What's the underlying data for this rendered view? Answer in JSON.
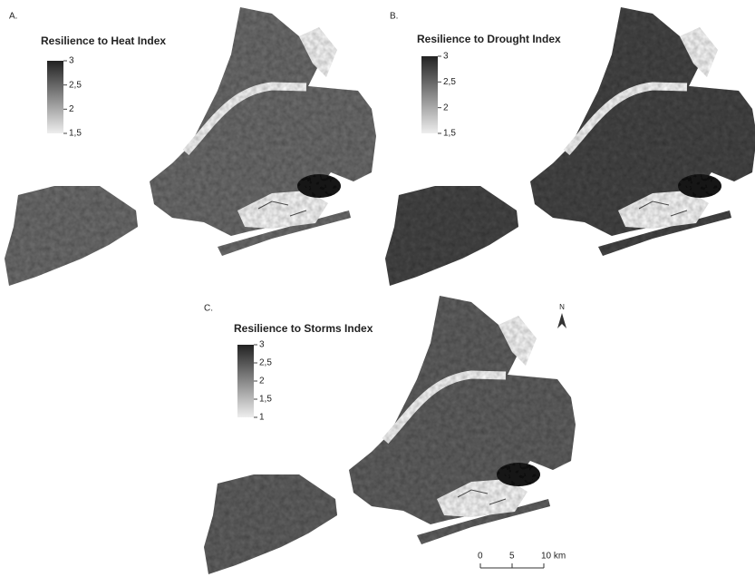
{
  "panels": [
    {
      "label": "A.",
      "title": "Resilience to Heat Index",
      "legend": {
        "lim": [
          1.5,
          3
        ],
        "ticks": [
          3,
          {
            "value": 2.5,
            "label": "2,5"
          },
          2,
          {
            "value": 1.5,
            "label": "1,5"
          }
        ]
      }
    },
    {
      "label": "B.",
      "title": "Resilience to Drought Index",
      "legend": {
        "lim": [
          1.5,
          3
        ],
        "ticks": [
          3,
          {
            "value": 2.5,
            "label": "2,5"
          },
          2,
          {
            "value": 1.5,
            "label": "1,5"
          }
        ]
      }
    },
    {
      "label": "C.",
      "title": "Resilience to Storms Index",
      "legend": {
        "lim": [
          1,
          3
        ],
        "ticks": [
          3,
          {
            "value": 2.5,
            "label": "2,5"
          },
          2,
          {
            "value": 1.5,
            "label": "1,5"
          },
          1
        ]
      }
    }
  ],
  "north_arrow": "N",
  "scale_bar": {
    "lim": [
      0,
      10
    ],
    "ticks": [
      0,
      5,
      {
        "value": 10,
        "label": "10 km"
      }
    ]
  }
}
